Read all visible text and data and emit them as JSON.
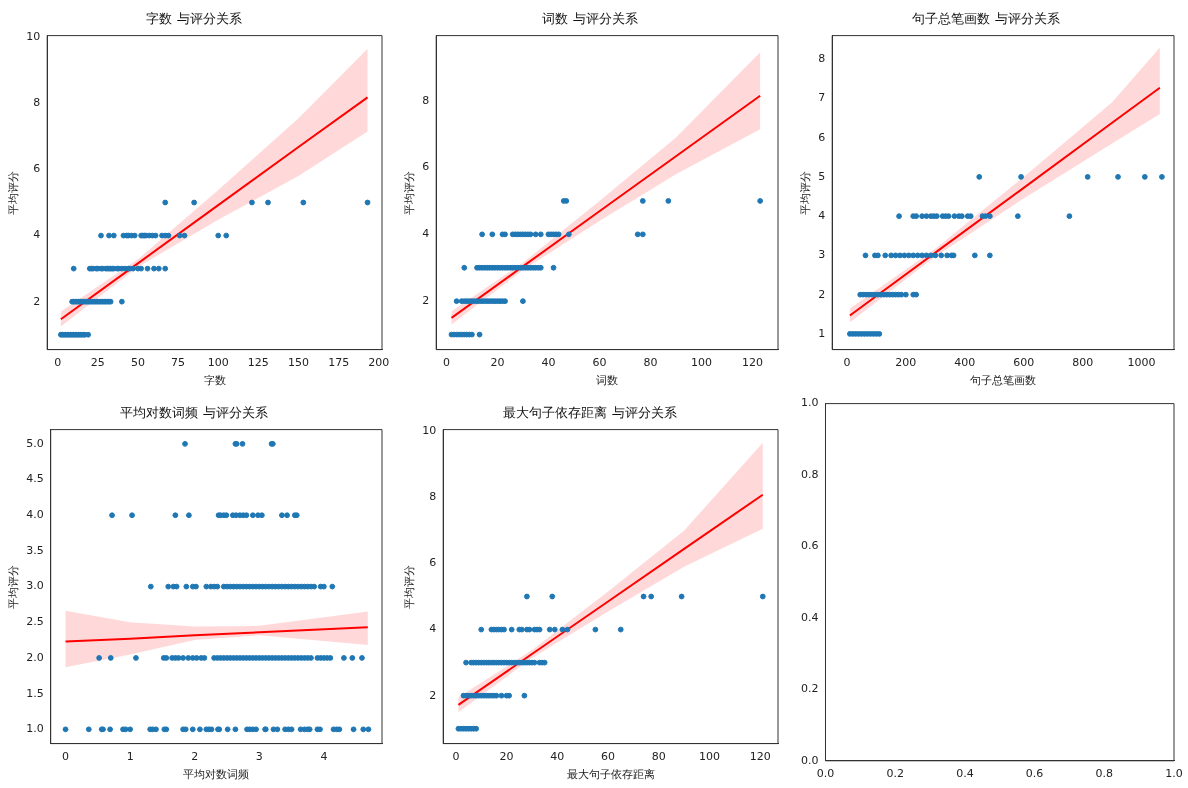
{
  "chart_data": [
    {
      "type": "scatter",
      "title": "字数 与评分关系",
      "xlabel": "字数",
      "ylabel": "平均评分",
      "xlim": [
        -6.5,
        202
      ],
      "xticks": [
        0,
        25,
        50,
        75,
        100,
        125,
        150,
        175,
        200
      ],
      "ylim": [
        0.55,
        10.05
      ],
      "yticks": [
        2,
        4,
        6,
        8,
        10
      ],
      "series": [
        {
          "color": "#1f77b4",
          "marker": "circle",
          "x": [
            2,
            3,
            4,
            5,
            6,
            7,
            8,
            9,
            10,
            11,
            12,
            13,
            14,
            15,
            16,
            17,
            19,
            9,
            10,
            11,
            12,
            13,
            14,
            15,
            16,
            17,
            18,
            19,
            20,
            21,
            22,
            23,
            24,
            25,
            26,
            27,
            28,
            29,
            30,
            31,
            32,
            33,
            40,
            10,
            20,
            21,
            22,
            24,
            25,
            27,
            28,
            30,
            31,
            32,
            33,
            34,
            35,
            37,
            38,
            40,
            42,
            44,
            45,
            47,
            50,
            52,
            56,
            60,
            63,
            67,
            27,
            32,
            35,
            41,
            43,
            44,
            46,
            48,
            52,
            53,
            54,
            55,
            57,
            59,
            61,
            65,
            67,
            69,
            76,
            79,
            100,
            105,
            67,
            85,
            121,
            131,
            153,
            193
          ],
          "values": [
            1,
            1,
            1,
            1,
            1,
            1,
            1,
            1,
            1,
            1,
            1,
            1,
            1,
            1,
            1,
            1,
            1,
            2,
            2,
            2,
            2,
            2,
            2,
            2,
            2,
            2,
            2,
            2,
            2,
            2,
            2,
            2,
            2,
            2,
            2,
            2,
            2,
            2,
            2,
            2,
            2,
            2,
            2,
            3,
            3,
            3,
            3,
            3,
            3,
            3,
            3,
            3,
            3,
            3,
            3,
            3,
            3,
            3,
            3,
            3,
            3,
            3,
            3,
            3,
            3,
            3,
            3,
            3,
            3,
            3,
            4,
            4,
            4,
            4,
            4,
            4,
            4,
            4,
            4,
            4,
            4,
            4,
            4,
            4,
            4,
            4,
            4,
            4,
            4,
            4,
            4,
            4,
            5,
            5,
            5,
            5,
            5,
            5
          ]
        },
        {
          "type": "line",
          "color": "#ff0000",
          "marker": "none",
          "x": [
            2,
            50,
            100,
            150,
            193
          ],
          "values": [
            1.47,
            3.16,
            4.92,
            6.68,
            8.18
          ],
          "lower": [
            1.25,
            3.05,
            4.48,
            5.8,
            7.15
          ],
          "upper": [
            1.7,
            3.28,
            5.38,
            7.55,
            9.65
          ]
        }
      ]
    },
    {
      "type": "scatter",
      "title": "词数 与评分关系",
      "xlabel": "词数",
      "ylabel": "平均评分",
      "xlim": [
        -4,
        130
      ],
      "xticks": [
        0,
        20,
        40,
        60,
        80,
        100,
        120
      ],
      "ylim": [
        0.55,
        9.95
      ],
      "yticks": [
        2,
        4,
        6,
        8
      ],
      "series": [
        {
          "color": "#1f77b4",
          "marker": "circle",
          "x": [
            2,
            3,
            4,
            5,
            6,
            7,
            8,
            9,
            10,
            13,
            4,
            6,
            7,
            8,
            9,
            10,
            11,
            12,
            13,
            14,
            15,
            16,
            17,
            18,
            19,
            20,
            21,
            22,
            23,
            30,
            7,
            12,
            13,
            14,
            15,
            16,
            17,
            18,
            19,
            20,
            21,
            22,
            23,
            24,
            25,
            26,
            27,
            28,
            29,
            30,
            31,
            32,
            33,
            34,
            35,
            36,
            37,
            42,
            14,
            18,
            22,
            23,
            26,
            27,
            28,
            29,
            30,
            31,
            32,
            33,
            35,
            37,
            40,
            41,
            42,
            43,
            44,
            48,
            75,
            77,
            46,
            47,
            77,
            87,
            123
          ],
          "values": [
            1,
            1,
            1,
            1,
            1,
            1,
            1,
            1,
            1,
            1,
            2,
            2,
            2,
            2,
            2,
            2,
            2,
            2,
            2,
            2,
            2,
            2,
            2,
            2,
            2,
            2,
            2,
            2,
            2,
            2,
            3,
            3,
            3,
            3,
            3,
            3,
            3,
            3,
            3,
            3,
            3,
            3,
            3,
            3,
            3,
            3,
            3,
            3,
            3,
            3,
            3,
            3,
            3,
            3,
            3,
            3,
            3,
            3,
            4,
            4,
            4,
            4,
            4,
            4,
            4,
            4,
            4,
            4,
            4,
            4,
            4,
            4,
            4,
            4,
            4,
            4,
            4,
            4,
            4,
            4,
            5,
            5,
            5,
            5,
            5
          ]
        },
        {
          "type": "line",
          "color": "#ff0000",
          "marker": "none",
          "x": [
            2,
            30,
            60,
            90,
            123
          ],
          "values": [
            1.5,
            3.04,
            4.69,
            6.34,
            8.15
          ],
          "lower": [
            1.3,
            2.93,
            4.4,
            5.8,
            7.15
          ],
          "upper": [
            1.7,
            3.15,
            5.0,
            6.9,
            9.45
          ]
        }
      ]
    },
    {
      "type": "scatter",
      "title": "句子总笔画数 与评分关系",
      "xlabel": "句子总笔画数",
      "ylabel": "平均评分",
      "xlim": [
        -50,
        1110
      ],
      "xticks": [
        0,
        200,
        400,
        600,
        800,
        1000
      ],
      "ylim": [
        0.6,
        8.6
      ],
      "yticks": [
        1,
        2,
        3,
        4,
        5,
        6,
        7,
        8
      ],
      "series": [
        {
          "color": "#1f77b4",
          "marker": "circle",
          "x": [
            10,
            20,
            30,
            40,
            50,
            60,
            70,
            80,
            90,
            100,
            110,
            45,
            55,
            65,
            75,
            85,
            95,
            105,
            115,
            125,
            135,
            145,
            155,
            165,
            175,
            185,
            200,
            225,
            235,
            63,
            95,
            105,
            130,
            150,
            165,
            180,
            195,
            210,
            225,
            240,
            255,
            270,
            285,
            300,
            320,
            340,
            355,
            362,
            434,
            485,
            177,
            225,
            235,
            255,
            270,
            285,
            295,
            305,
            325,
            335,
            345,
            365,
            380,
            390,
            410,
            420,
            460,
            470,
            485,
            580,
            755,
            449,
            591,
            817,
            920,
            1011,
            1069
          ],
          "values": [
            1,
            1,
            1,
            1,
            1,
            1,
            1,
            1,
            1,
            1,
            1,
            2,
            2,
            2,
            2,
            2,
            2,
            2,
            2,
            2,
            2,
            2,
            2,
            2,
            2,
            2,
            2,
            2,
            2,
            3,
            3,
            3,
            3,
            3,
            3,
            3,
            3,
            3,
            3,
            3,
            3,
            3,
            3,
            3,
            3,
            3,
            3,
            3,
            3,
            3,
            4,
            4,
            4,
            4,
            4,
            4,
            4,
            4,
            4,
            4,
            4,
            4,
            4,
            4,
            4,
            4,
            4,
            4,
            4,
            4,
            4,
            5,
            5,
            5,
            5,
            5,
            5
          ]
        },
        {
          "type": "line",
          "color": "#ff0000",
          "marker": "none",
          "x": [
            10,
            300,
            600,
            900,
            1062
          ],
          "values": [
            1.47,
            3.07,
            4.72,
            6.38,
            7.27
          ],
          "lower": [
            1.3,
            2.97,
            4.45,
            5.85,
            6.6
          ],
          "upper": [
            1.65,
            3.17,
            5.0,
            6.9,
            8.3
          ]
        }
      ]
    },
    {
      "type": "scatter",
      "title": "平均对数词频 与评分关系",
      "xlabel": "平均对数词频",
      "ylabel": "平均评分",
      "xlim": [
        -0.23,
        4.9
      ],
      "xticks": [
        0,
        1,
        2,
        3,
        4
      ],
      "ylim": [
        0.8,
        5.2
      ],
      "yticks": [
        {
          "value": 1,
          "label": "1.0"
        },
        1.5,
        {
          "value": 2,
          "label": "2.0"
        },
        2.5,
        {
          "value": 3,
          "label": "3.0"
        },
        3.5,
        {
          "value": 4,
          "label": "4.0"
        },
        4.5,
        {
          "value": 5,
          "label": "5.0"
        }
      ],
      "series": [
        {
          "color": "#1f77b4",
          "marker": "circle",
          "x": [
            1.85,
            2.63,
            2.65,
            2.74,
            3.19,
            3.21,
            0.72,
            1.03,
            1.7,
            1.91,
            2.37,
            2.4,
            2.45,
            2.49,
            2.59,
            2.64,
            2.7,
            2.75,
            2.8,
            2.9,
            2.98,
            3.04,
            3.35,
            3.43,
            3.55,
            3.58,
            1.32,
            1.59,
            1.67,
            1.72,
            1.87,
            1.97,
            2.02,
            2.18,
            2.25,
            2.3,
            2.35,
            2.45,
            2.5,
            2.55,
            2.6,
            2.65,
            2.7,
            2.75,
            2.8,
            2.85,
            2.9,
            2.95,
            3.0,
            3.05,
            3.1,
            3.15,
            3.2,
            3.25,
            3.3,
            3.35,
            3.4,
            3.45,
            3.5,
            3.55,
            3.6,
            3.65,
            3.7,
            3.75,
            3.8,
            3.85,
            3.95,
            4.0,
            4.13,
            0.52,
            0.7,
            1.09,
            1.52,
            1.56,
            1.65,
            1.7,
            1.75,
            1.82,
            1.9,
            1.97,
            2.03,
            2.1,
            2.15,
            2.3,
            2.35,
            2.4,
            2.45,
            2.5,
            2.55,
            2.6,
            2.65,
            2.7,
            2.75,
            2.8,
            2.85,
            2.9,
            2.95,
            3.0,
            3.05,
            3.1,
            3.15,
            3.2,
            3.25,
            3.3,
            3.35,
            3.4,
            3.45,
            3.5,
            3.55,
            3.6,
            3.65,
            3.7,
            3.75,
            3.8,
            3.9,
            3.95,
            4.0,
            4.05,
            4.1,
            4.31,
            4.44,
            4.59,
            0,
            0.36,
            0.56,
            0.58,
            0.69,
            0.89,
            0.93,
            1.0,
            1.31,
            1.35,
            1.4,
            1.53,
            1.56,
            1.82,
            1.86,
            1.97,
            2.08,
            2.18,
            2.22,
            2.26,
            2.36,
            2.38,
            2.51,
            2.63,
            2.81,
            2.85,
            2.9,
            2.95,
            3.09,
            3.1,
            3.22,
            3.28,
            3.4,
            3.45,
            3.5,
            3.64,
            3.7,
            3.75,
            3.78,
            3.9,
            3.94,
            4.15,
            4.2,
            4.24,
            4.46,
            4.61,
            4.69
          ],
          "values": [
            5,
            5,
            5,
            5,
            5,
            5,
            4,
            4,
            4,
            4,
            4,
            4,
            4,
            4,
            4,
            4,
            4,
            4,
            4,
            4,
            4,
            4,
            4,
            4,
            4,
            4,
            3,
            3,
            3,
            3,
            3,
            3,
            3,
            3,
            3,
            3,
            3,
            3,
            3,
            3,
            3,
            3,
            3,
            3,
            3,
            3,
            3,
            3,
            3,
            3,
            3,
            3,
            3,
            3,
            3,
            3,
            3,
            3,
            3,
            3,
            3,
            3,
            3,
            3,
            3,
            3,
            3,
            3,
            3,
            2,
            2,
            2,
            2,
            2,
            2,
            2,
            2,
            2,
            2,
            2,
            2,
            2,
            2,
            2,
            2,
            2,
            2,
            2,
            2,
            2,
            2,
            2,
            2,
            2,
            2,
            2,
            2,
            2,
            2,
            2,
            2,
            2,
            2,
            2,
            2,
            2,
            2,
            2,
            2,
            2,
            2,
            2,
            2,
            2,
            2,
            2,
            2,
            2,
            2,
            2,
            2,
            2,
            1,
            1,
            1,
            1,
            1,
            1,
            1,
            1,
            1,
            1,
            1,
            1,
            1,
            1,
            1,
            1,
            1,
            1,
            1,
            1,
            1,
            1,
            1,
            1,
            1,
            1,
            1,
            1,
            1,
            1,
            1,
            1,
            1,
            1,
            1,
            1,
            1,
            1,
            1,
            1,
            1,
            1,
            1,
            1,
            1,
            1,
            1
          ]
        },
        {
          "type": "line",
          "color": "#ff0000",
          "marker": "none",
          "x": [
            0,
            1,
            2,
            3,
            4.68
          ],
          "values": [
            2.23,
            2.27,
            2.32,
            2.36,
            2.43
          ],
          "lower": [
            1.87,
            2.05,
            2.25,
            2.32,
            2.18
          ],
          "upper": [
            2.66,
            2.5,
            2.44,
            2.45,
            2.65
          ]
        }
      ]
    },
    {
      "type": "scatter",
      "title": "最大句子依存距离 与评分关系",
      "xlabel": "最大句子依存距离",
      "ylabel": "平均评分",
      "xlim": [
        -5,
        127
      ],
      "xticks": [
        0,
        20,
        40,
        60,
        80,
        100,
        120
      ],
      "ylim": [
        0.55,
        10.05
      ],
      "yticks": [
        2,
        4,
        6,
        8,
        10
      ],
      "series": [
        {
          "color": "#1f77b4",
          "marker": "circle",
          "x": [
            1,
            2,
            3,
            4,
            5,
            6,
            7,
            8,
            3,
            4,
            5,
            6,
            7,
            8,
            9,
            10,
            11,
            12,
            13,
            14,
            15,
            16,
            18,
            20,
            21,
            27,
            4,
            6,
            7,
            8,
            9,
            10,
            11,
            12,
            13,
            14,
            15,
            16,
            17,
            18,
            19,
            20,
            21,
            22,
            23,
            24,
            25,
            26,
            27,
            28,
            29,
            30,
            31,
            33,
            34,
            35,
            10,
            14,
            15,
            16,
            17,
            18,
            19,
            22,
            25,
            26,
            28,
            29,
            31,
            32,
            33,
            37,
            39,
            42,
            44,
            55,
            65,
            28,
            38,
            74,
            77,
            89,
            121
          ],
          "values": [
            1,
            1,
            1,
            1,
            1,
            1,
            1,
            1,
            2,
            2,
            2,
            2,
            2,
            2,
            2,
            2,
            2,
            2,
            2,
            2,
            2,
            2,
            2,
            2,
            2,
            2,
            3,
            3,
            3,
            3,
            3,
            3,
            3,
            3,
            3,
            3,
            3,
            3,
            3,
            3,
            3,
            3,
            3,
            3,
            3,
            3,
            3,
            3,
            3,
            3,
            3,
            3,
            3,
            3,
            3,
            3,
            4,
            4,
            4,
            4,
            4,
            4,
            4,
            4,
            4,
            4,
            4,
            4,
            4,
            4,
            4,
            4,
            4,
            4,
            4,
            4,
            4,
            5,
            5,
            5,
            5,
            5,
            5
          ]
        },
        {
          "type": "line",
          "color": "#ff0000",
          "marker": "none",
          "x": [
            1,
            30,
            60,
            90,
            121
          ],
          "values": [
            1.72,
            3.26,
            4.85,
            6.44,
            8.08
          ],
          "lower": [
            1.5,
            3.14,
            4.55,
            5.9,
            7.05
          ],
          "upper": [
            1.95,
            3.38,
            5.15,
            7.0,
            9.65
          ]
        }
      ]
    },
    {
      "type": "scatter",
      "xlim": [
        0,
        1
      ],
      "xticks": [
        {
          "value": 0,
          "label": "0.0"
        },
        0.2,
        0.4,
        0.6,
        0.8,
        {
          "value": 1,
          "label": "1.0"
        }
      ],
      "ylim": [
        0,
        1
      ],
      "yticks": [
        {
          "value": 0,
          "label": "0.0"
        },
        0.2,
        0.4,
        0.6,
        0.8,
        {
          "value": 1,
          "label": "1.0"
        }
      ]
    }
  ]
}
